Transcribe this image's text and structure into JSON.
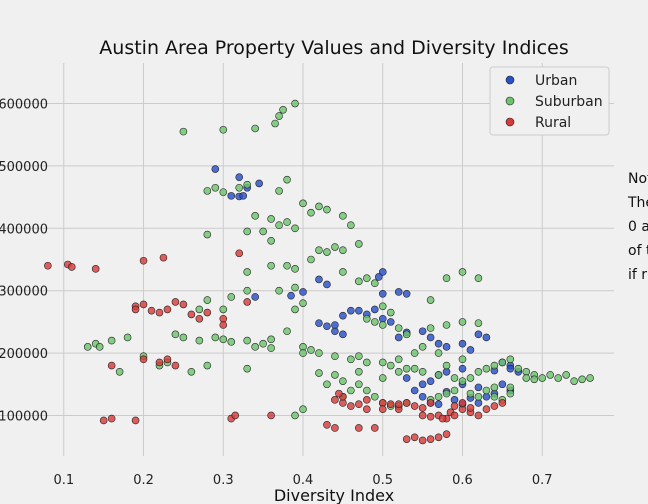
{
  "chart_data": {
    "type": "scatter",
    "title": "Austin Area Property Values and Diversity Indices",
    "xlabel": "Diversity Index",
    "ylabel": "",
    "xlim": [
      0.02,
      0.79
    ],
    "ylim": [
      35000,
      665000
    ],
    "x_ticks": [
      0.1,
      0.2,
      0.3,
      0.4,
      0.5,
      0.6,
      0.7
    ],
    "x_tick_labels": [
      "0.1",
      "0.2",
      "0.3",
      "0.4",
      "0.5",
      "0.6",
      "0.7"
    ],
    "y_ticks": [
      100000,
      200000,
      300000,
      400000,
      500000,
      600000
    ],
    "y_tick_labels": [
      "100000",
      "200000",
      "300000",
      "400000",
      "500000",
      "600000"
    ],
    "grid": true,
    "legend_position": "top-right",
    "side_note_lines": [
      "Not",
      "The",
      "0 a",
      "of t",
      "if r"
    ],
    "series": [
      {
        "name": "Urban",
        "color": "#2850c8",
        "points": [
          [
            0.29,
            495000
          ],
          [
            0.31,
            452000
          ],
          [
            0.32,
            482000
          ],
          [
            0.32,
            451000
          ],
          [
            0.325,
            452000
          ],
          [
            0.33,
            465000
          ],
          [
            0.345,
            472000
          ],
          [
            0.34,
            290000
          ],
          [
            0.4,
            298000
          ],
          [
            0.42,
            318000
          ],
          [
            0.43,
            310000
          ],
          [
            0.45,
            260000
          ],
          [
            0.46,
            268000
          ],
          [
            0.47,
            268000
          ],
          [
            0.48,
            262000
          ],
          [
            0.49,
            270000
          ],
          [
            0.5,
            330000
          ],
          [
            0.495,
            322000
          ],
          [
            0.52,
            298000
          ],
          [
            0.53,
            295000
          ],
          [
            0.5,
            255000
          ],
          [
            0.51,
            250000
          ],
          [
            0.42,
            248000
          ],
          [
            0.43,
            243000
          ],
          [
            0.44,
            235000
          ],
          [
            0.45,
            230000
          ],
          [
            0.52,
            225000
          ],
          [
            0.53,
            233000
          ],
          [
            0.55,
            235000
          ],
          [
            0.56,
            225000
          ],
          [
            0.57,
            215000
          ],
          [
            0.58,
            210000
          ],
          [
            0.6,
            215000
          ],
          [
            0.62,
            230000
          ],
          [
            0.63,
            225000
          ],
          [
            0.61,
            205000
          ],
          [
            0.6,
            175000
          ],
          [
            0.58,
            170000
          ],
          [
            0.57,
            165000
          ],
          [
            0.56,
            155000
          ],
          [
            0.55,
            150000
          ],
          [
            0.53,
            160000
          ],
          [
            0.54,
            140000
          ],
          [
            0.55,
            130000
          ],
          [
            0.6,
            150000
          ],
          [
            0.62,
            145000
          ],
          [
            0.65,
            150000
          ],
          [
            0.66,
            140000
          ],
          [
            0.64,
            135000
          ],
          [
            0.67,
            170000
          ],
          [
            0.66,
            180000
          ],
          [
            0.65,
            185000
          ],
          [
            0.64,
            172000
          ],
          [
            0.59,
            125000
          ],
          [
            0.6,
            118000
          ],
          [
            0.62,
            120000
          ],
          [
            0.56,
            120000
          ],
          [
            0.57,
            118000
          ],
          [
            0.63,
            130000
          ],
          [
            0.66,
            175000
          ],
          [
            0.58,
            138000
          ],
          [
            0.61,
            128000
          ],
          [
            0.5,
            295000
          ],
          [
            0.385,
            292000
          ],
          [
            0.44,
            245000
          ]
        ]
      },
      {
        "name": "Suburban",
        "color": "#6cc46c",
        "points": [
          [
            0.25,
            555000
          ],
          [
            0.3,
            558000
          ],
          [
            0.34,
            560000
          ],
          [
            0.37,
            580000
          ],
          [
            0.375,
            590000
          ],
          [
            0.39,
            600000
          ],
          [
            0.365,
            568000
          ],
          [
            0.28,
            460000
          ],
          [
            0.29,
            465000
          ],
          [
            0.3,
            458000
          ],
          [
            0.32,
            465000
          ],
          [
            0.33,
            470000
          ],
          [
            0.37,
            460000
          ],
          [
            0.38,
            478000
          ],
          [
            0.4,
            440000
          ],
          [
            0.41,
            425000
          ],
          [
            0.42,
            435000
          ],
          [
            0.43,
            430000
          ],
          [
            0.45,
            420000
          ],
          [
            0.46,
            405000
          ],
          [
            0.34,
            420000
          ],
          [
            0.36,
            415000
          ],
          [
            0.37,
            405000
          ],
          [
            0.38,
            410000
          ],
          [
            0.39,
            400000
          ],
          [
            0.33,
            395000
          ],
          [
            0.35,
            395000
          ],
          [
            0.28,
            390000
          ],
          [
            0.36,
            380000
          ],
          [
            0.42,
            365000
          ],
          [
            0.43,
            362000
          ],
          [
            0.44,
            370000
          ],
          [
            0.45,
            365000
          ],
          [
            0.47,
            375000
          ],
          [
            0.41,
            350000
          ],
          [
            0.38,
            340000
          ],
          [
            0.36,
            340000
          ],
          [
            0.33,
            330000
          ],
          [
            0.45,
            330000
          ],
          [
            0.48,
            320000
          ],
          [
            0.47,
            315000
          ],
          [
            0.49,
            312000
          ],
          [
            0.39,
            305000
          ],
          [
            0.37,
            300000
          ],
          [
            0.33,
            300000
          ],
          [
            0.31,
            290000
          ],
          [
            0.28,
            285000
          ],
          [
            0.27,
            270000
          ],
          [
            0.3,
            270000
          ],
          [
            0.4,
            280000
          ],
          [
            0.39,
            270000
          ],
          [
            0.5,
            275000
          ],
          [
            0.51,
            265000
          ],
          [
            0.48,
            255000
          ],
          [
            0.49,
            250000
          ],
          [
            0.5,
            245000
          ],
          [
            0.52,
            240000
          ],
          [
            0.53,
            230000
          ],
          [
            0.56,
            240000
          ],
          [
            0.58,
            245000
          ],
          [
            0.6,
            250000
          ],
          [
            0.62,
            248000
          ],
          [
            0.38,
            235000
          ],
          [
            0.36,
            222000
          ],
          [
            0.35,
            215000
          ],
          [
            0.34,
            210000
          ],
          [
            0.33,
            220000
          ],
          [
            0.31,
            218000
          ],
          [
            0.3,
            222000
          ],
          [
            0.29,
            225000
          ],
          [
            0.27,
            220000
          ],
          [
            0.25,
            225000
          ],
          [
            0.24,
            230000
          ],
          [
            0.14,
            215000
          ],
          [
            0.145,
            210000
          ],
          [
            0.16,
            220000
          ],
          [
            0.18,
            225000
          ],
          [
            0.13,
            210000
          ],
          [
            0.4,
            210000
          ],
          [
            0.41,
            205000
          ],
          [
            0.42,
            200000
          ],
          [
            0.44,
            195000
          ],
          [
            0.46,
            190000
          ],
          [
            0.47,
            195000
          ],
          [
            0.48,
            185000
          ],
          [
            0.5,
            185000
          ],
          [
            0.51,
            180000
          ],
          [
            0.52,
            170000
          ],
          [
            0.54,
            175000
          ],
          [
            0.55,
            170000
          ],
          [
            0.57,
            165000
          ],
          [
            0.59,
            160000
          ],
          [
            0.6,
            155000
          ],
          [
            0.61,
            160000
          ],
          [
            0.62,
            170000
          ],
          [
            0.63,
            175000
          ],
          [
            0.64,
            180000
          ],
          [
            0.65,
            185000
          ],
          [
            0.66,
            190000
          ],
          [
            0.67,
            175000
          ],
          [
            0.68,
            170000
          ],
          [
            0.69,
            165000
          ],
          [
            0.7,
            160000
          ],
          [
            0.71,
            165000
          ],
          [
            0.72,
            160000
          ],
          [
            0.73,
            165000
          ],
          [
            0.74,
            155000
          ],
          [
            0.75,
            158000
          ],
          [
            0.76,
            160000
          ],
          [
            0.2,
            195000
          ],
          [
            0.22,
            180000
          ],
          [
            0.23,
            185000
          ],
          [
            0.26,
            170000
          ],
          [
            0.28,
            180000
          ],
          [
            0.33,
            175000
          ],
          [
            0.17,
            170000
          ],
          [
            0.39,
            100000
          ],
          [
            0.4,
            110000
          ],
          [
            0.45,
            130000
          ],
          [
            0.46,
            140000
          ],
          [
            0.47,
            150000
          ],
          [
            0.48,
            140000
          ],
          [
            0.49,
            130000
          ],
          [
            0.5,
            120000
          ],
          [
            0.52,
            115000
          ],
          [
            0.53,
            120000
          ],
          [
            0.56,
            125000
          ],
          [
            0.57,
            130000
          ],
          [
            0.58,
            135000
          ],
          [
            0.59,
            140000
          ],
          [
            0.61,
            135000
          ],
          [
            0.62,
            130000
          ],
          [
            0.63,
            140000
          ],
          [
            0.64,
            130000
          ],
          [
            0.65,
            125000
          ],
          [
            0.66,
            135000
          ],
          [
            0.6,
            330000
          ],
          [
            0.62,
            320000
          ],
          [
            0.58,
            320000
          ],
          [
            0.56,
            285000
          ],
          [
            0.52,
            190000
          ],
          [
            0.53,
            175000
          ],
          [
            0.5,
            160000
          ],
          [
            0.47,
            170000
          ],
          [
            0.58,
            180000
          ],
          [
            0.6,
            190000
          ],
          [
            0.64,
            145000
          ],
          [
            0.68,
            160000
          ],
          [
            0.69,
            158000
          ],
          [
            0.42,
            168000
          ],
          [
            0.43,
            150000
          ],
          [
            0.55,
            210000
          ],
          [
            0.57,
            200000
          ],
          [
            0.66,
            145000
          ],
          [
            0.4,
            200000
          ],
          [
            0.36,
            208000
          ],
          [
            0.44,
            165000
          ],
          [
            0.45,
            155000
          ],
          [
            0.54,
            200000
          ],
          [
            0.39,
            335000
          ],
          [
            0.51,
            115000
          ]
        ]
      },
      {
        "name": "Rural",
        "color": "#d83a3a",
        "points": [
          [
            0.08,
            340000
          ],
          [
            0.105,
            342000
          ],
          [
            0.11,
            338000
          ],
          [
            0.14,
            335000
          ],
          [
            0.2,
            348000
          ],
          [
            0.225,
            353000
          ],
          [
            0.32,
            360000
          ],
          [
            0.19,
            275000
          ],
          [
            0.19,
            270000
          ],
          [
            0.2,
            278000
          ],
          [
            0.21,
            268000
          ],
          [
            0.22,
            265000
          ],
          [
            0.23,
            270000
          ],
          [
            0.24,
            282000
          ],
          [
            0.25,
            278000
          ],
          [
            0.26,
            262000
          ],
          [
            0.27,
            255000
          ],
          [
            0.28,
            265000
          ],
          [
            0.33,
            282000
          ],
          [
            0.3,
            255000
          ],
          [
            0.3,
            245000
          ],
          [
            0.2,
            190000
          ],
          [
            0.22,
            185000
          ],
          [
            0.23,
            190000
          ],
          [
            0.24,
            180000
          ],
          [
            0.16,
            180000
          ],
          [
            0.15,
            92000
          ],
          [
            0.16,
            95000
          ],
          [
            0.19,
            92000
          ],
          [
            0.31,
            95000
          ],
          [
            0.315,
            100000
          ],
          [
            0.36,
            100000
          ],
          [
            0.43,
            85000
          ],
          [
            0.44,
            80000
          ],
          [
            0.45,
            120000
          ],
          [
            0.46,
            115000
          ],
          [
            0.47,
            118000
          ],
          [
            0.48,
            110000
          ],
          [
            0.49,
            80000
          ],
          [
            0.5,
            120000
          ],
          [
            0.51,
            118000
          ],
          [
            0.52,
            110000
          ],
          [
            0.53,
            120000
          ],
          [
            0.54,
            115000
          ],
          [
            0.55,
            112000
          ],
          [
            0.56,
            120000
          ],
          [
            0.57,
            100000
          ],
          [
            0.58,
            95000
          ],
          [
            0.585,
            105000
          ],
          [
            0.59,
            115000
          ],
          [
            0.6,
            110000
          ],
          [
            0.61,
            105000
          ],
          [
            0.62,
            100000
          ],
          [
            0.63,
            110000
          ],
          [
            0.64,
            115000
          ],
          [
            0.65,
            120000
          ],
          [
            0.53,
            62000
          ],
          [
            0.54,
            65000
          ],
          [
            0.55,
            60000
          ],
          [
            0.56,
            62000
          ],
          [
            0.57,
            65000
          ],
          [
            0.58,
            70000
          ],
          [
            0.47,
            80000
          ],
          [
            0.45,
            130000
          ],
          [
            0.44,
            125000
          ],
          [
            0.59,
            100000
          ],
          [
            0.6,
            120000
          ],
          [
            0.61,
            112000
          ],
          [
            0.5,
            110000
          ],
          [
            0.52,
            118000
          ],
          [
            0.55,
            100000
          ],
          [
            0.56,
            98000
          ],
          [
            0.575,
            95000
          ],
          [
            0.445,
            135000
          ],
          [
            0.48,
            125000
          ]
        ]
      }
    ]
  }
}
